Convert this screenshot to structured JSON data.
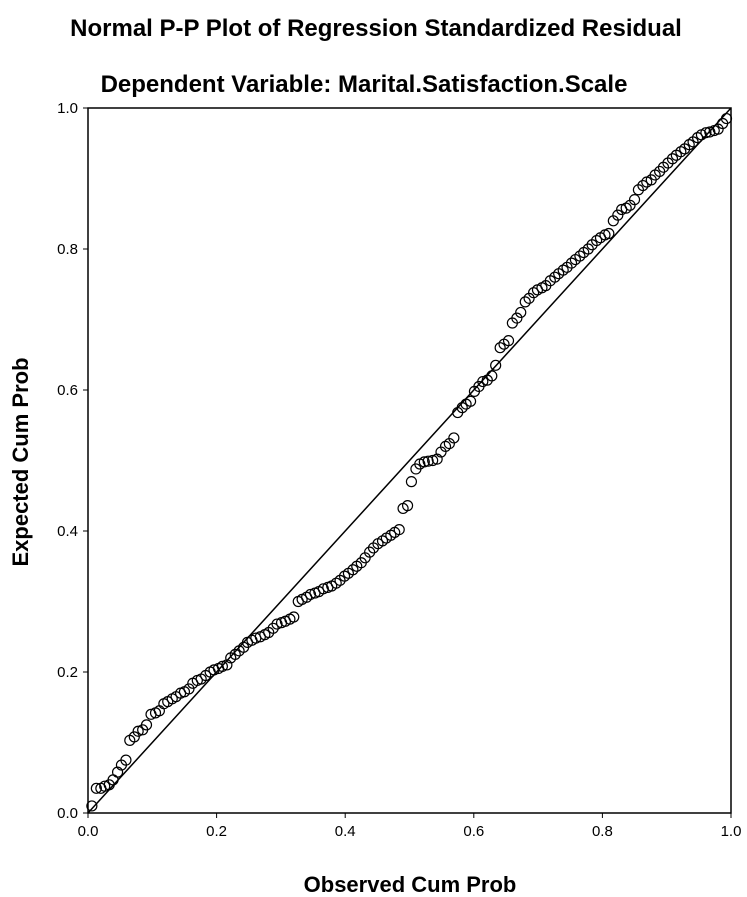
{
  "chart_data": {
    "type": "scatter",
    "title": "Normal P-P Plot of Regression Standardized Residual",
    "subtitle": "Dependent Variable: Marital.Satisfaction.Scale",
    "xlabel": "Observed Cum Prob",
    "ylabel": "Expected Cum Prob",
    "xlim": [
      0,
      1
    ],
    "ylim": [
      0,
      1
    ],
    "x_ticks": [
      "0.0",
      "0.2",
      "0.4",
      "0.6",
      "0.8",
      "1.0"
    ],
    "y_ticks": [
      "0.0",
      "0.2",
      "0.4",
      "0.6",
      "0.8",
      "1.0"
    ],
    "grid": false,
    "legend": "none",
    "reference_line": [
      [
        0,
        0
      ],
      [
        1,
        1
      ]
    ],
    "colors": {
      "points": "#000000",
      "line": "#000000",
      "background": "#ffffff"
    },
    "points": [
      [
        0.006,
        0.01
      ],
      [
        0.013,
        0.035
      ],
      [
        0.02,
        0.035
      ],
      [
        0.026,
        0.038
      ],
      [
        0.033,
        0.04
      ],
      [
        0.039,
        0.047
      ],
      [
        0.046,
        0.058
      ],
      [
        0.052,
        0.068
      ],
      [
        0.059,
        0.075
      ],
      [
        0.065,
        0.103
      ],
      [
        0.072,
        0.108
      ],
      [
        0.078,
        0.116
      ],
      [
        0.085,
        0.118
      ],
      [
        0.091,
        0.125
      ],
      [
        0.098,
        0.14
      ],
      [
        0.105,
        0.142
      ],
      [
        0.111,
        0.145
      ],
      [
        0.118,
        0.155
      ],
      [
        0.124,
        0.158
      ],
      [
        0.131,
        0.162
      ],
      [
        0.137,
        0.165
      ],
      [
        0.144,
        0.17
      ],
      [
        0.15,
        0.172
      ],
      [
        0.157,
        0.176
      ],
      [
        0.163,
        0.184
      ],
      [
        0.17,
        0.188
      ],
      [
        0.176,
        0.19
      ],
      [
        0.183,
        0.195
      ],
      [
        0.19,
        0.2
      ],
      [
        0.196,
        0.203
      ],
      [
        0.203,
        0.205
      ],
      [
        0.209,
        0.208
      ],
      [
        0.216,
        0.21
      ],
      [
        0.222,
        0.22
      ],
      [
        0.229,
        0.225
      ],
      [
        0.235,
        0.23
      ],
      [
        0.242,
        0.235
      ],
      [
        0.248,
        0.242
      ],
      [
        0.255,
        0.245
      ],
      [
        0.261,
        0.248
      ],
      [
        0.268,
        0.25
      ],
      [
        0.275,
        0.253
      ],
      [
        0.281,
        0.256
      ],
      [
        0.288,
        0.262
      ],
      [
        0.294,
        0.268
      ],
      [
        0.301,
        0.27
      ],
      [
        0.307,
        0.272
      ],
      [
        0.314,
        0.275
      ],
      [
        0.32,
        0.278
      ],
      [
        0.327,
        0.3
      ],
      [
        0.333,
        0.303
      ],
      [
        0.34,
        0.306
      ],
      [
        0.346,
        0.31
      ],
      [
        0.353,
        0.312
      ],
      [
        0.359,
        0.314
      ],
      [
        0.366,
        0.318
      ],
      [
        0.373,
        0.32
      ],
      [
        0.379,
        0.322
      ],
      [
        0.386,
        0.326
      ],
      [
        0.392,
        0.33
      ],
      [
        0.399,
        0.336
      ],
      [
        0.405,
        0.34
      ],
      [
        0.412,
        0.345
      ],
      [
        0.418,
        0.35
      ],
      [
        0.425,
        0.355
      ],
      [
        0.431,
        0.362
      ],
      [
        0.438,
        0.37
      ],
      [
        0.444,
        0.376
      ],
      [
        0.451,
        0.382
      ],
      [
        0.458,
        0.386
      ],
      [
        0.464,
        0.39
      ],
      [
        0.471,
        0.394
      ],
      [
        0.477,
        0.398
      ],
      [
        0.484,
        0.402
      ],
      [
        0.49,
        0.432
      ],
      [
        0.497,
        0.436
      ],
      [
        0.503,
        0.47
      ],
      [
        0.51,
        0.488
      ],
      [
        0.516,
        0.495
      ],
      [
        0.523,
        0.498
      ],
      [
        0.529,
        0.499
      ],
      [
        0.536,
        0.5
      ],
      [
        0.543,
        0.502
      ],
      [
        0.549,
        0.512
      ],
      [
        0.556,
        0.52
      ],
      [
        0.562,
        0.524
      ],
      [
        0.569,
        0.532
      ],
      [
        0.575,
        0.568
      ],
      [
        0.582,
        0.575
      ],
      [
        0.588,
        0.58
      ],
      [
        0.595,
        0.584
      ],
      [
        0.601,
        0.598
      ],
      [
        0.608,
        0.605
      ],
      [
        0.614,
        0.612
      ],
      [
        0.621,
        0.614
      ],
      [
        0.628,
        0.62
      ],
      [
        0.634,
        0.635
      ],
      [
        0.641,
        0.66
      ],
      [
        0.647,
        0.665
      ],
      [
        0.654,
        0.67
      ],
      [
        0.66,
        0.695
      ],
      [
        0.667,
        0.702
      ],
      [
        0.673,
        0.71
      ],
      [
        0.68,
        0.725
      ],
      [
        0.686,
        0.73
      ],
      [
        0.693,
        0.738
      ],
      [
        0.699,
        0.742
      ],
      [
        0.706,
        0.745
      ],
      [
        0.712,
        0.748
      ],
      [
        0.719,
        0.755
      ],
      [
        0.726,
        0.76
      ],
      [
        0.732,
        0.765
      ],
      [
        0.739,
        0.77
      ],
      [
        0.745,
        0.774
      ],
      [
        0.752,
        0.78
      ],
      [
        0.758,
        0.785
      ],
      [
        0.765,
        0.79
      ],
      [
        0.771,
        0.795
      ],
      [
        0.778,
        0.8
      ],
      [
        0.784,
        0.806
      ],
      [
        0.791,
        0.812
      ],
      [
        0.797,
        0.816
      ],
      [
        0.804,
        0.82
      ],
      [
        0.81,
        0.822
      ],
      [
        0.817,
        0.84
      ],
      [
        0.824,
        0.848
      ],
      [
        0.83,
        0.856
      ],
      [
        0.837,
        0.858
      ],
      [
        0.843,
        0.862
      ],
      [
        0.85,
        0.87
      ],
      [
        0.856,
        0.884
      ],
      [
        0.863,
        0.89
      ],
      [
        0.869,
        0.895
      ],
      [
        0.876,
        0.898
      ],
      [
        0.882,
        0.905
      ],
      [
        0.889,
        0.91
      ],
      [
        0.895,
        0.916
      ],
      [
        0.902,
        0.922
      ],
      [
        0.909,
        0.928
      ],
      [
        0.915,
        0.933
      ],
      [
        0.922,
        0.938
      ],
      [
        0.928,
        0.942
      ],
      [
        0.935,
        0.948
      ],
      [
        0.941,
        0.952
      ],
      [
        0.948,
        0.958
      ],
      [
        0.954,
        0.962
      ],
      [
        0.961,
        0.965
      ],
      [
        0.967,
        0.966
      ],
      [
        0.974,
        0.968
      ],
      [
        0.98,
        0.97
      ],
      [
        0.987,
        0.978
      ],
      [
        0.993,
        0.985
      ]
    ]
  }
}
